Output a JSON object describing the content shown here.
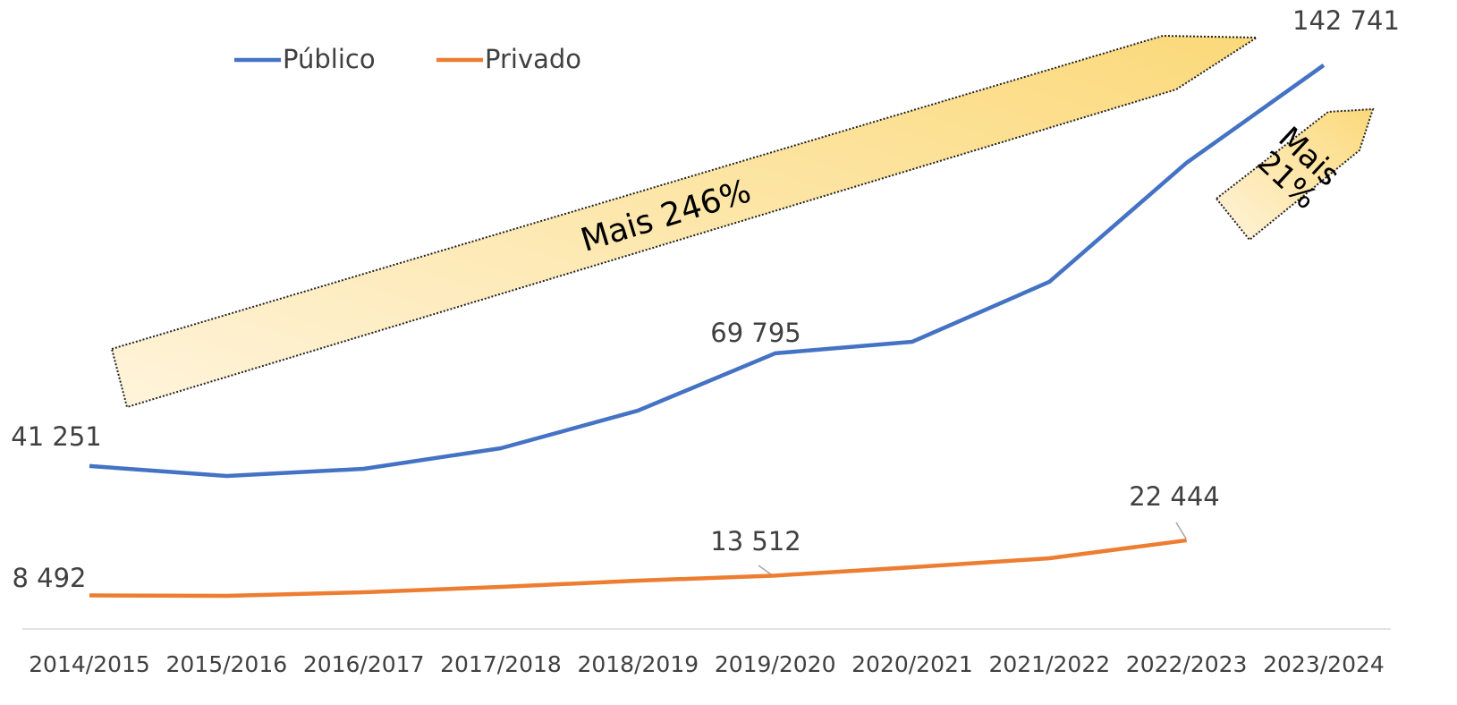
{
  "chart_data": {
    "type": "line",
    "categories": [
      "2014/2015",
      "2015/2016",
      "2016/2017",
      "2017/2018",
      "2018/2019",
      "2019/2020",
      "2020/2021",
      "2021/2022",
      "2022/2023",
      "2023/2024"
    ],
    "series": [
      {
        "name": "Público",
        "color": "#4472c4",
        "values": [
          41251,
          38740,
          40550,
          45760,
          55280,
          69795,
          72720,
          87900,
          118030,
          142741
        ],
        "value_labels": [
          "41 251",
          null,
          null,
          null,
          null,
          "69 795",
          null,
          null,
          null,
          "142 741"
        ]
      },
      {
        "name": "Privado",
        "color": "#ed7d31",
        "values": [
          8492,
          8380,
          9290,
          10650,
          12230,
          13512,
          15630,
          17900,
          22444,
          null
        ],
        "value_labels": [
          "8 492",
          null,
          null,
          null,
          null,
          "13 512",
          null,
          null,
          "22 444",
          null
        ]
      }
    ],
    "ylim": [
      0,
      160000
    ],
    "legend": "top-left",
    "annotations": [
      "Mais 246%",
      "Mais 21%"
    ]
  }
}
